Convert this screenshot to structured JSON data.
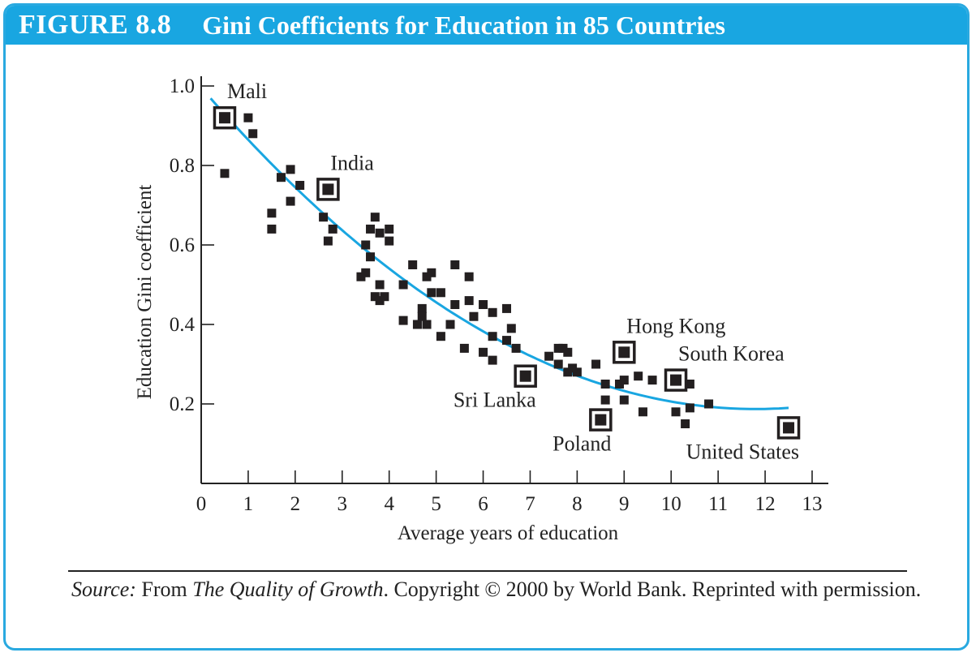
{
  "figure": {
    "number": "FIGURE 8.8",
    "title": "Gini Coefficients for Education in 85 Countries",
    "accent_color": "#19a6e1"
  },
  "source": {
    "label": "Source:",
    "text_before": " From ",
    "book": "The Quality of Growth",
    "text_after": ". Copyright © 2000 by World Bank. Reprinted with permission."
  },
  "chart_data": {
    "type": "scatter",
    "xlabel": "Average years of education",
    "ylabel": "Education Gini coefficient",
    "xlim": [
      0,
      13
    ],
    "ylim": [
      0,
      1.0
    ],
    "xticks": [
      0,
      1,
      2,
      3,
      4,
      5,
      6,
      7,
      8,
      9,
      10,
      11,
      12,
      13
    ],
    "yticks": [
      0.2,
      0.4,
      0.6,
      0.8,
      1.0
    ],
    "ytick_labels": [
      "0.2",
      "0.4",
      "0.6",
      "0.8",
      "1.0"
    ],
    "grid": false,
    "marker_color": "#231f20",
    "trend_color": "#19a6e1",
    "trend_coeffs": [
      0.996,
      -0.1371,
      0.00581
    ],
    "trend_range": [
      0.2,
      12.5
    ],
    "points": [
      {
        "x": 0.5,
        "y": 0.78
      },
      {
        "x": 1.0,
        "y": 0.92
      },
      {
        "x": 1.1,
        "y": 0.88
      },
      {
        "x": 1.5,
        "y": 0.68
      },
      {
        "x": 1.5,
        "y": 0.64
      },
      {
        "x": 1.7,
        "y": 0.77
      },
      {
        "x": 1.9,
        "y": 0.79
      },
      {
        "x": 1.9,
        "y": 0.71
      },
      {
        "x": 2.1,
        "y": 0.75
      },
      {
        "x": 2.6,
        "y": 0.67
      },
      {
        "x": 2.7,
        "y": 0.61
      },
      {
        "x": 2.8,
        "y": 0.64
      },
      {
        "x": 3.4,
        "y": 0.52
      },
      {
        "x": 3.5,
        "y": 0.53
      },
      {
        "x": 3.5,
        "y": 0.6
      },
      {
        "x": 3.6,
        "y": 0.64
      },
      {
        "x": 3.6,
        "y": 0.57
      },
      {
        "x": 3.7,
        "y": 0.67
      },
      {
        "x": 3.7,
        "y": 0.47
      },
      {
        "x": 3.8,
        "y": 0.63
      },
      {
        "x": 3.8,
        "y": 0.5
      },
      {
        "x": 3.8,
        "y": 0.46
      },
      {
        "x": 3.9,
        "y": 0.47
      },
      {
        "x": 4.0,
        "y": 0.61
      },
      {
        "x": 4.0,
        "y": 0.64
      },
      {
        "x": 4.3,
        "y": 0.5
      },
      {
        "x": 4.3,
        "y": 0.41
      },
      {
        "x": 4.5,
        "y": 0.55
      },
      {
        "x": 4.6,
        "y": 0.4
      },
      {
        "x": 4.7,
        "y": 0.44
      },
      {
        "x": 4.7,
        "y": 0.42
      },
      {
        "x": 4.8,
        "y": 0.52
      },
      {
        "x": 4.8,
        "y": 0.4
      },
      {
        "x": 4.9,
        "y": 0.53
      },
      {
        "x": 4.9,
        "y": 0.48
      },
      {
        "x": 5.1,
        "y": 0.37
      },
      {
        "x": 5.1,
        "y": 0.48
      },
      {
        "x": 5.3,
        "y": 0.4
      },
      {
        "x": 5.4,
        "y": 0.55
      },
      {
        "x": 5.4,
        "y": 0.45
      },
      {
        "x": 5.6,
        "y": 0.34
      },
      {
        "x": 5.7,
        "y": 0.52
      },
      {
        "x": 5.7,
        "y": 0.46
      },
      {
        "x": 5.8,
        "y": 0.42
      },
      {
        "x": 6.0,
        "y": 0.45
      },
      {
        "x": 6.0,
        "y": 0.33
      },
      {
        "x": 6.2,
        "y": 0.43
      },
      {
        "x": 6.2,
        "y": 0.37
      },
      {
        "x": 6.2,
        "y": 0.31
      },
      {
        "x": 6.5,
        "y": 0.44
      },
      {
        "x": 6.5,
        "y": 0.36
      },
      {
        "x": 6.6,
        "y": 0.39
      },
      {
        "x": 6.7,
        "y": 0.34
      },
      {
        "x": 7.4,
        "y": 0.32
      },
      {
        "x": 7.6,
        "y": 0.34
      },
      {
        "x": 7.7,
        "y": 0.34
      },
      {
        "x": 7.6,
        "y": 0.3
      },
      {
        "x": 7.8,
        "y": 0.33
      },
      {
        "x": 7.8,
        "y": 0.28
      },
      {
        "x": 8.0,
        "y": 0.28
      },
      {
        "x": 7.9,
        "y": 0.29
      },
      {
        "x": 8.4,
        "y": 0.3
      },
      {
        "x": 8.6,
        "y": 0.25
      },
      {
        "x": 8.6,
        "y": 0.21
      },
      {
        "x": 8.9,
        "y": 0.25
      },
      {
        "x": 9.0,
        "y": 0.26
      },
      {
        "x": 9.0,
        "y": 0.21
      },
      {
        "x": 9.3,
        "y": 0.27
      },
      {
        "x": 9.4,
        "y": 0.18
      },
      {
        "x": 9.6,
        "y": 0.26
      },
      {
        "x": 10.1,
        "y": 0.18
      },
      {
        "x": 10.3,
        "y": 0.15
      },
      {
        "x": 10.4,
        "y": 0.25
      },
      {
        "x": 10.4,
        "y": 0.19
      },
      {
        "x": 10.8,
        "y": 0.2
      }
    ],
    "highlighted": [
      {
        "name": "Mali",
        "x": 0.5,
        "y": 0.92,
        "label_pos": "above-right"
      },
      {
        "name": "India",
        "x": 2.7,
        "y": 0.74,
        "label_pos": "above-right"
      },
      {
        "name": "Sri Lanka",
        "x": 6.9,
        "y": 0.27,
        "label_pos": "below-left"
      },
      {
        "name": "Poland",
        "x": 8.5,
        "y": 0.16,
        "label_pos": "below-left"
      },
      {
        "name": "Hong Kong",
        "x": 9.0,
        "y": 0.33,
        "label_pos": "above-right"
      },
      {
        "name": "South Korea",
        "x": 10.1,
        "y": 0.26,
        "label_pos": "above-right"
      },
      {
        "name": "United States",
        "x": 12.5,
        "y": 0.14,
        "label_pos": "below-left"
      }
    ]
  }
}
